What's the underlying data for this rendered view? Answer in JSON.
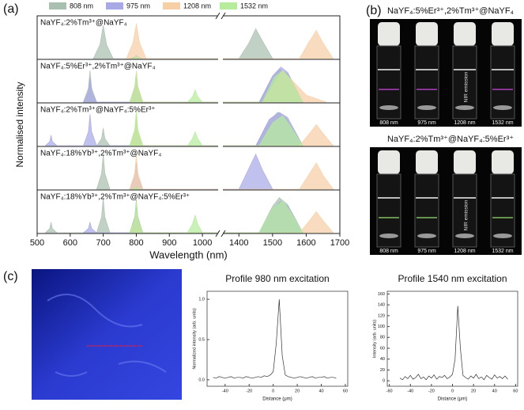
{
  "panel_labels": [
    "(a)",
    "(b)",
    "(c)"
  ],
  "chart_data": [
    {
      "type": "area",
      "xlabel": "Wavelength (nm)",
      "ylabel": "Normalised intensity",
      "xlim": [
        500,
        1700
      ],
      "xbreak": [
        1050,
        1350
      ],
      "xticks": [
        500,
        600,
        700,
        800,
        900,
        1000,
        1400,
        1500,
        1600,
        1700
      ],
      "ylim": [
        0,
        1.15
      ],
      "legend": [
        {
          "name": "808 nm",
          "color": "#a9bfb0"
        },
        {
          "name": "975 nm",
          "color": "#a9a9e6"
        },
        {
          "name": "1208 nm",
          "color": "#f6cfa6"
        },
        {
          "name": "1532 nm",
          "color": "#b6ec9c"
        }
      ],
      "subplots": [
        {
          "title": "NaYF₄:2%Tm³⁺@NaYF₄",
          "series": [
            {
              "x": [
                670,
                690,
                700,
                710,
                730,
                1400,
                1430,
                1450,
                1470,
                1500
              ],
              "values": [
                0,
                0.4,
                0.95,
                0.4,
                0,
                0,
                0.45,
                0.85,
                0.5,
                0
              ]
            },
            {
              "x": [
                780,
                795,
                800,
                805,
                820
              ],
              "values": [
                0,
                0.05,
                0.1,
                0.05,
                0
              ]
            },
            {
              "x": [
                770,
                790,
                800,
                810,
                830,
                1580,
                1610,
                1630,
                1650,
                1680
              ],
              "values": [
                0,
                0.45,
                1.0,
                0.45,
                0,
                0,
                0.5,
                0.8,
                0.45,
                0
              ]
            },
            {
              "x": [
                785,
                800,
                815
              ],
              "values": [
                0,
                0.05,
                0
              ]
            }
          ]
        },
        {
          "title": "NaYF₄:5%Er³⁺,2%Tm³⁺@NaYF₄",
          "series": [
            {
              "x": [
                640,
                655,
                660,
                665,
                680,
                780,
                795,
                800,
                805,
                820,
                1460,
                1500,
                1520,
                1545,
                1590
              ],
              "values": [
                0,
                0.4,
                0.9,
                0.4,
                0,
                0,
                0.4,
                0.85,
                0.4,
                0,
                0,
                0.7,
                0.95,
                0.8,
                0
              ]
            },
            {
              "x": [
                640,
                655,
                660,
                665,
                680,
                780,
                795,
                800,
                805,
                820,
                1460,
                1500,
                1525,
                1545,
                1590
              ],
              "values": [
                0,
                0.3,
                0.7,
                0.3,
                0,
                0,
                0.3,
                0.6,
                0.3,
                0,
                0,
                0.75,
                1.0,
                0.85,
                0
              ]
            },
            {
              "x": [
                780,
                795,
                800,
                805,
                820,
                1470,
                1510,
                1530,
                1600,
                1660
              ],
              "values": [
                0,
                0.45,
                0.9,
                0.45,
                0,
                0,
                0.6,
                0.9,
                0.2,
                0
              ]
            },
            {
              "x": [
                780,
                795,
                800,
                805,
                820,
                955,
                970,
                978,
                986,
                1000,
                1470,
                1505,
                1530,
                1550,
                1590
              ],
              "values": [
                0,
                0.4,
                0.85,
                0.4,
                0,
                0,
                0.15,
                0.35,
                0.15,
                0,
                0,
                0.7,
                0.9,
                0.7,
                0
              ]
            }
          ]
        },
        {
          "title": "NaYF₄:2%Tm³⁺@NaYF₄:5%Er³⁺",
          "series": [
            {
              "x": [
                680,
                695,
                700,
                705,
                720,
                780,
                795,
                800,
                805,
                820,
                1450,
                1490,
                1515,
                1540,
                1590
              ],
              "values": [
                0,
                0.2,
                0.5,
                0.2,
                0,
                0,
                0.4,
                0.85,
                0.4,
                0,
                0,
                0.7,
                0.95,
                0.8,
                0
              ]
            },
            {
              "x": [
                525,
                538,
                542,
                546,
                560,
                640,
                655,
                660,
                665,
                680,
                1450,
                1490,
                1520,
                1545,
                1590
              ],
              "values": [
                0,
                0.12,
                0.3,
                0.12,
                0,
                0,
                0.4,
                0.9,
                0.4,
                0,
                0,
                0.75,
                0.95,
                0.8,
                0
              ]
            },
            {
              "x": [
                780,
                795,
                800,
                805,
                820,
                1580,
                1610,
                1630,
                1650,
                1680
              ],
              "values": [
                0,
                0.4,
                0.8,
                0.4,
                0,
                0,
                0.35,
                0.6,
                0.35,
                0
              ]
            },
            {
              "x": [
                780,
                795,
                800,
                805,
                820,
                955,
                970,
                978,
                986,
                1000,
                1460,
                1500,
                1530,
                1550,
                1590
              ],
              "values": [
                0,
                0.45,
                1.0,
                0.45,
                0,
                0,
                0.2,
                0.4,
                0.2,
                0,
                0,
                0.65,
                0.85,
                0.6,
                0
              ]
            }
          ]
        },
        {
          "title": "NaYF₄:18%Yb³⁺,2%Tm³⁺@NaYF₄",
          "series": [
            {
              "x": [
                680,
                695,
                700,
                705,
                720
              ],
              "values": [
                0,
                0.45,
                1.0,
                0.45,
                0
              ]
            },
            {
              "x": [
                780,
                795,
                800,
                805,
                820,
                1400,
                1430,
                1450,
                1470,
                1500
              ],
              "values": [
                0,
                0.35,
                0.75,
                0.35,
                0,
                0,
                0.6,
                1.0,
                0.55,
                0
              ]
            },
            {
              "x": [
                780,
                795,
                800,
                805,
                820,
                1580,
                1610,
                1630,
                1650,
                1680
              ],
              "values": [
                0,
                0.45,
                1.0,
                0.45,
                0,
                0,
                0.45,
                0.75,
                0.4,
                0
              ]
            },
            {
              "x": [
                785,
                800,
                815
              ],
              "values": [
                0,
                0.04,
                0
              ]
            }
          ]
        },
        {
          "title": "NaYF₄:18%Yb³⁺,2%Tm³⁺@NaYF₄:5%Er³⁺",
          "series": [
            {
              "x": [
                525,
                538,
                542,
                546,
                560,
                680,
                695,
                700,
                705,
                720,
                780,
                795,
                800,
                805,
                820,
                1460,
                1500,
                1520,
                1545,
                1590
              ],
              "values": [
                0,
                0.12,
                0.3,
                0.12,
                0,
                0,
                0.45,
                1.0,
                0.45,
                0,
                0,
                0.45,
                0.95,
                0.45,
                0,
                0,
                0.75,
                1.0,
                0.8,
                0
              ]
            },
            {
              "x": [
                640,
                655,
                660,
                665,
                680,
                780,
                795,
                800,
                805,
                820,
                1460,
                1500,
                1525,
                1545,
                1590
              ],
              "values": [
                0,
                0.12,
                0.3,
                0.12,
                0,
                0,
                0.35,
                0.7,
                0.35,
                0,
                0,
                0.7,
                0.9,
                0.75,
                0
              ]
            },
            {
              "x": [
                780,
                795,
                800,
                805,
                820,
                1580,
                1610,
                1630,
                1650,
                1680
              ],
              "values": [
                0,
                0.3,
                0.6,
                0.3,
                0,
                0,
                0.35,
                0.6,
                0.35,
                0
              ]
            },
            {
              "x": [
                780,
                795,
                800,
                805,
                820,
                955,
                970,
                978,
                986,
                1000,
                1460,
                1500,
                1530,
                1550,
                1590
              ],
              "values": [
                0,
                0.4,
                0.9,
                0.4,
                0,
                0,
                0.25,
                0.5,
                0.25,
                0,
                0,
                0.7,
                0.9,
                0.65,
                0
              ]
            }
          ]
        }
      ]
    },
    {
      "type": "line",
      "title": "Profile 980 nm excitation",
      "xlabel": "Distance (μm)",
      "ylabel": "Normalized intensity (arb. units)",
      "xlim": [
        -55,
        62
      ],
      "xticks": [
        -40,
        -20,
        0,
        20,
        40,
        60
      ],
      "ylim": [
        -0.08,
        1.1
      ],
      "yticks": [
        {
          "value": 0,
          "label": "0.0"
        },
        {
          "value": 0.5,
          "label": "0.5"
        },
        {
          "value": 1,
          "label": "1.0"
        }
      ],
      "color": "#333333",
      "x": [
        -50,
        -47.5,
        -45,
        -42.5,
        -40,
        -37.5,
        -35,
        -32.5,
        -30,
        -27.5,
        -25,
        -22.5,
        -20,
        -17.5,
        -15,
        -12.5,
        -10,
        -7.5,
        -5,
        -2.5,
        0,
        2.5,
        5,
        7.5,
        10,
        12.5,
        15,
        17.5,
        20,
        22.5,
        25,
        27.5,
        30,
        32.5,
        35,
        37.5,
        40,
        42.5,
        45,
        47.5,
        50,
        52.5
      ],
      "values": [
        0.03,
        0.02,
        0.04,
        0.03,
        0.02,
        0.03,
        0.04,
        0.02,
        0.03,
        0.03,
        0.02,
        0.04,
        0.03,
        0.02,
        0.03,
        0.04,
        0.03,
        0.05,
        0.04,
        0.06,
        0.1,
        0.45,
        1.0,
        0.3,
        0.06,
        0.04,
        0.03,
        0.02,
        0.03,
        0.04,
        0.03,
        0.02,
        0.03,
        0.04,
        0.02,
        0.03,
        0.03,
        0.04,
        0.02,
        0.03,
        0.03,
        0.02
      ]
    },
    {
      "type": "line",
      "title": "Profile 1540 nm excitation",
      "xlabel": "Distance (μm)",
      "ylabel": "Intensity (arb. units)",
      "xlim": [
        -62,
        62
      ],
      "xticks": [
        -60,
        -40,
        -20,
        0,
        20,
        40,
        60
      ],
      "ylim": [
        -10,
        165
      ],
      "yticks": [
        0,
        20,
        40,
        60,
        80,
        100,
        120,
        140,
        160
      ],
      "color": "#333333",
      "x": [
        -50,
        -47.5,
        -45,
        -42.5,
        -40,
        -37.5,
        -35,
        -32.5,
        -30,
        -27.5,
        -25,
        -22.5,
        -20,
        -17.5,
        -15,
        -12.5,
        -10,
        -7.5,
        -5,
        -2.5,
        0,
        2.5,
        5,
        7.5,
        10,
        12.5,
        15,
        17.5,
        20,
        22.5,
        25,
        27.5,
        30,
        32.5,
        35,
        37.5,
        40,
        42.5,
        45,
        47.5,
        50,
        52.5
      ],
      "values": [
        5,
        2,
        8,
        4,
        10,
        3,
        6,
        12,
        4,
        7,
        2,
        9,
        5,
        11,
        3,
        8,
        6,
        10,
        4,
        7,
        12,
        40,
        138,
        60,
        10,
        6,
        3,
        9,
        5,
        12,
        4,
        7,
        2,
        10,
        6,
        3,
        11,
        5,
        8,
        4,
        9,
        3
      ]
    }
  ],
  "photos": [
    {
      "title": "NaYF₄:5%Er³⁺,2%Tm³⁺@NaYF₄",
      "labels": [
        "808 nm",
        "975 nm",
        "1208 nm",
        "1532 nm"
      ],
      "annotation": "NIR emission"
    },
    {
      "title": "NaYF₄:2%Tm³⁺@NaYF₄:5%Er³⁺",
      "labels": [
        "808 nm",
        "975 nm",
        "1208 nm",
        "1532 nm"
      ],
      "annotation": "NIR emission"
    }
  ]
}
